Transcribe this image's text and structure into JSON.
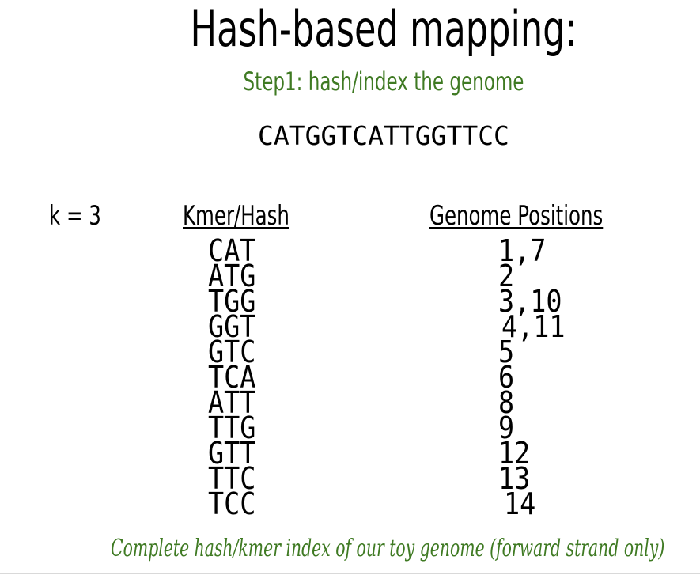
{
  "slide": {
    "title": "Hash-based mapping:",
    "subtitle": "Step1: hash/index the genome",
    "genome": "CATGGTCATTGGTTCC",
    "k_param": "k = 3",
    "caption": "Complete hash/kmer index of our toy genome (forward strand only)",
    "accent_color": "#3f7a23"
  },
  "table": {
    "headers": {
      "kmer": "Kmer/Hash",
      "positions": "Genome Positions"
    },
    "rows": [
      {
        "kmer": "CAT",
        "positions": "1,7"
      },
      {
        "kmer": "ATG",
        "positions": "2"
      },
      {
        "kmer": "TGG",
        "positions": "3,10"
      },
      {
        "kmer": "GGT",
        "positions": "4,11"
      },
      {
        "kmer": "GTC",
        "positions": "5"
      },
      {
        "kmer": "TCA",
        "positions": "6"
      },
      {
        "kmer": "ATT",
        "positions": "8"
      },
      {
        "kmer": "TTG",
        "positions": "9"
      },
      {
        "kmer": "GTT",
        "positions": "12"
      },
      {
        "kmer": "TTC",
        "positions": "13"
      },
      {
        "kmer": "TCC",
        "positions": "14"
      }
    ]
  }
}
